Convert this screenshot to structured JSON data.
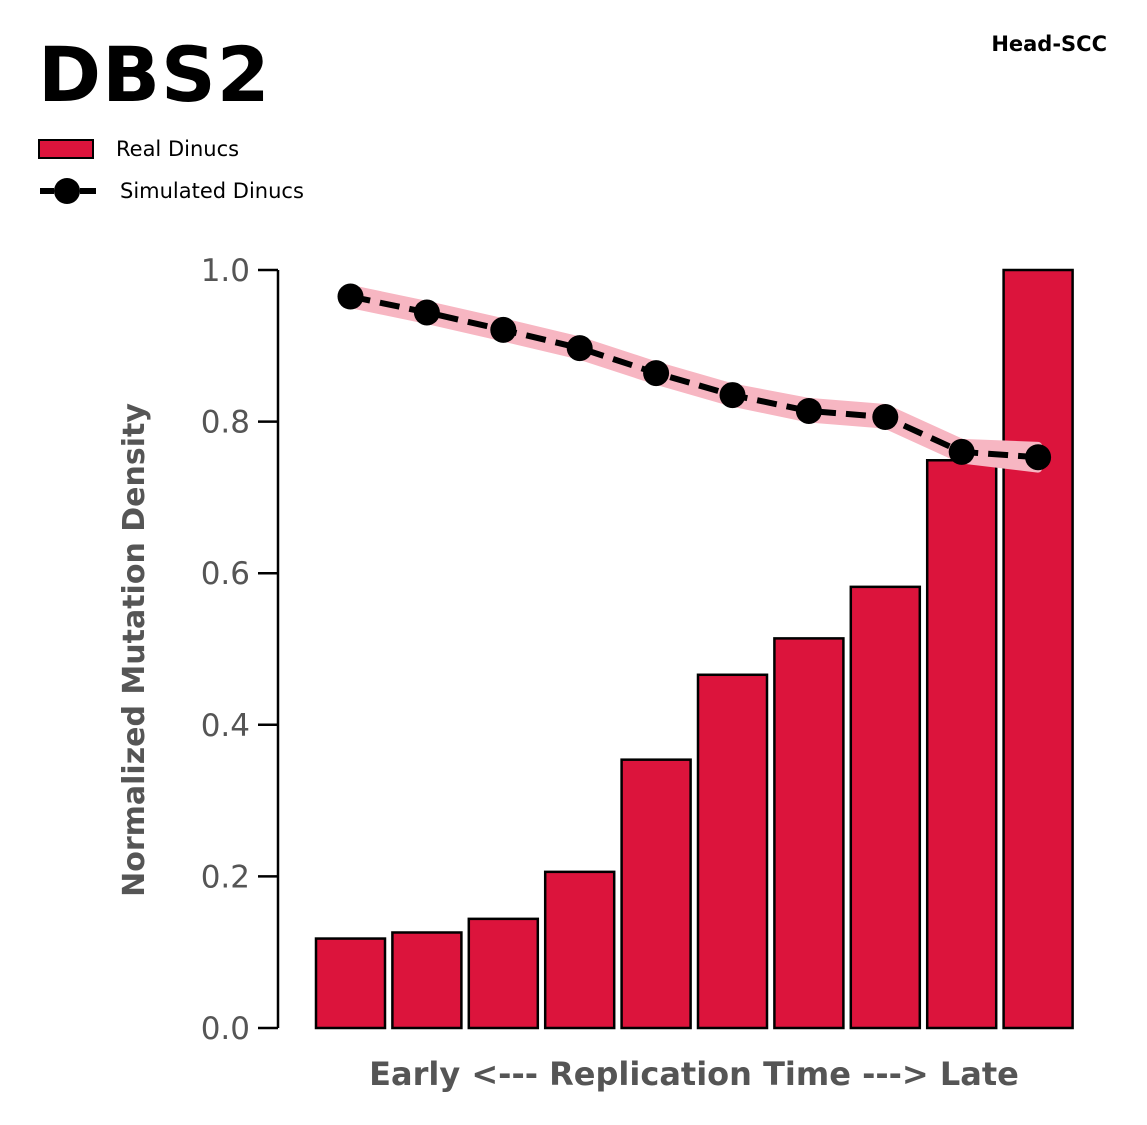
{
  "title": "DBS2",
  "corner_label": "Head-SCC",
  "legend": {
    "real_label": "Real Dinucs",
    "simulated_label": "Simulated Dinucs"
  },
  "colors": {
    "bar_fill": "#DC143C",
    "bar_edge": "#000000",
    "sim_line": "#000000",
    "sim_band": "#F7B6C2",
    "axis_text": "#555555"
  },
  "chart_data": {
    "type": "bar",
    "xlabel": "Early <--- Replication Time ---> Late",
    "ylabel": "Normalized Mutation Density",
    "ylim": [
      0,
      1
    ],
    "yticks": [
      "0.0",
      "0.2",
      "0.4",
      "0.6",
      "0.8",
      "1.0"
    ],
    "grid": false,
    "legend_position": "top-left",
    "series": [
      {
        "name": "Real Dinucs",
        "type": "bar",
        "values": [
          0.118,
          0.126,
          0.144,
          0.206,
          0.354,
          0.466,
          0.514,
          0.582,
          0.749,
          1.0
        ]
      },
      {
        "name": "Simulated Dinucs",
        "type": "line",
        "values": [
          0.965,
          0.944,
          0.921,
          0.897,
          0.864,
          0.835,
          0.814,
          0.806,
          0.76,
          0.753
        ],
        "band_low": [
          0.955,
          0.934,
          0.911,
          0.887,
          0.854,
          0.825,
          0.804,
          0.796,
          0.75,
          0.738
        ],
        "band_high": [
          0.975,
          0.954,
          0.931,
          0.907,
          0.874,
          0.845,
          0.826,
          0.818,
          0.772,
          0.768
        ]
      }
    ]
  }
}
